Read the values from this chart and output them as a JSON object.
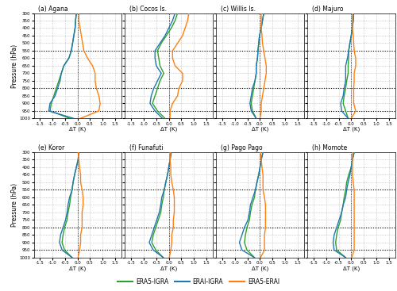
{
  "pressure_levels": [
    300,
    350,
    400,
    450,
    500,
    550,
    600,
    650,
    700,
    750,
    800,
    850,
    900,
    950,
    1000
  ],
  "highlighted_levels": [
    550,
    800,
    950
  ],
  "stations": [
    "(a) Agana",
    "(b) Cocos Is.",
    "(c) Willis Is.",
    "(d) Majuro",
    "(e) Koror",
    "(f) Funafuti",
    "(g) Pago Pago",
    "(h) Momote"
  ],
  "xlim": [
    -1.75,
    1.75
  ],
  "xticks": [
    -1.5,
    -1.0,
    -0.5,
    0.0,
    0.5,
    1.0,
    1.5
  ],
  "ylim": [
    1000,
    300
  ],
  "yticks": [
    300,
    350,
    400,
    450,
    500,
    550,
    600,
    650,
    700,
    750,
    800,
    850,
    900,
    950,
    1000
  ],
  "ylabel": "Pressure (hPa)",
  "xlabel": "ΔT (K)",
  "color_era5_igra": "#2ca02c",
  "color_erai_igra": "#1f77b4",
  "color_era5_erai": "#ff7f0e",
  "legend_labels": [
    "ERA5-IGRA",
    "ERAI-IGRA",
    "ERA5-ERAI"
  ],
  "agana": {
    "era5_igra": [
      -0.05,
      -0.08,
      -0.1,
      -0.15,
      -0.2,
      -0.25,
      -0.35,
      -0.55,
      -0.65,
      -0.75,
      -0.85,
      -0.95,
      -1.05,
      -1.1,
      -0.3
    ],
    "erai_igra": [
      -0.05,
      -0.08,
      -0.1,
      -0.15,
      -0.2,
      -0.25,
      -0.35,
      -0.55,
      -0.65,
      -0.7,
      -0.8,
      -0.9,
      -1.1,
      -1.15,
      -0.15
    ],
    "era5_erai": [
      0.05,
      0.05,
      0.1,
      0.15,
      0.2,
      0.25,
      0.4,
      0.6,
      0.7,
      0.7,
      0.75,
      0.85,
      0.9,
      0.85,
      0.1
    ]
  },
  "cocos_is": {
    "era5_igra": [
      0.35,
      0.25,
      0.1,
      -0.1,
      -0.3,
      -0.45,
      -0.4,
      -0.35,
      -0.2,
      -0.35,
      -0.45,
      -0.55,
      -0.65,
      -0.45,
      -0.15
    ],
    "erai_igra": [
      0.25,
      0.15,
      0.0,
      -0.15,
      -0.35,
      -0.55,
      -0.55,
      -0.5,
      -0.3,
      -0.45,
      -0.6,
      -0.7,
      -0.75,
      -0.55,
      -0.25
    ],
    "era5_erai": [
      0.8,
      0.75,
      0.65,
      0.55,
      0.35,
      0.15,
      0.15,
      0.25,
      0.55,
      0.55,
      0.4,
      0.35,
      0.15,
      0.05,
      0.05
    ]
  },
  "willis_is": {
    "era5_igra": [
      0.15,
      0.1,
      0.05,
      -0.02,
      -0.05,
      -0.08,
      -0.1,
      -0.15,
      -0.15,
      -0.2,
      -0.25,
      -0.3,
      -0.35,
      -0.3,
      -0.15
    ],
    "erai_igra": [
      0.15,
      0.1,
      0.05,
      -0.02,
      -0.05,
      -0.08,
      -0.1,
      -0.15,
      -0.15,
      -0.2,
      -0.3,
      -0.35,
      -0.4,
      -0.35,
      -0.15
    ],
    "era5_erai": [
      0.05,
      0.05,
      0.05,
      0.08,
      0.1,
      0.15,
      0.2,
      0.25,
      0.25,
      0.2,
      0.15,
      0.1,
      0.05,
      0.05,
      0.0
    ]
  },
  "majuro": {
    "era5_igra": [
      0.1,
      0.08,
      0.05,
      0.0,
      -0.05,
      -0.1,
      -0.1,
      -0.12,
      -0.12,
      -0.18,
      -0.22,
      -0.28,
      -0.32,
      -0.22,
      -0.12
    ],
    "erai_igra": [
      0.1,
      0.08,
      0.05,
      0.0,
      -0.05,
      -0.1,
      -0.15,
      -0.22,
      -0.22,
      -0.22,
      -0.28,
      -0.32,
      -0.42,
      -0.38,
      -0.12
    ],
    "era5_erai": [
      0.05,
      0.05,
      0.05,
      0.08,
      0.1,
      0.12,
      0.18,
      0.18,
      0.12,
      0.12,
      0.1,
      0.1,
      0.1,
      0.18,
      0.0
    ]
  },
  "koror": {
    "era5_igra": [
      0.05,
      0.02,
      -0.05,
      -0.12,
      -0.18,
      -0.22,
      -0.28,
      -0.32,
      -0.38,
      -0.42,
      -0.52,
      -0.58,
      -0.62,
      -0.52,
      -0.22
    ],
    "erai_igra": [
      0.05,
      0.02,
      -0.05,
      -0.12,
      -0.18,
      -0.22,
      -0.32,
      -0.38,
      -0.42,
      -0.48,
      -0.58,
      -0.68,
      -0.72,
      -0.62,
      -0.22
    ],
    "era5_erai": [
      0.02,
      0.05,
      0.08,
      0.12,
      0.12,
      0.18,
      0.22,
      0.22,
      0.18,
      0.18,
      0.18,
      0.12,
      0.12,
      0.08,
      0.02
    ]
  },
  "funafuti": {
    "era5_igra": [
      0.1,
      0.05,
      0.0,
      -0.05,
      -0.12,
      -0.18,
      -0.22,
      -0.28,
      -0.32,
      -0.42,
      -0.52,
      -0.62,
      -0.68,
      -0.52,
      -0.22
    ],
    "erai_igra": [
      0.1,
      0.05,
      0.0,
      -0.05,
      -0.12,
      -0.18,
      -0.28,
      -0.32,
      -0.38,
      -0.48,
      -0.58,
      -0.68,
      -0.78,
      -0.62,
      -0.22
    ],
    "era5_erai": [
      0.05,
      0.05,
      0.08,
      0.08,
      0.12,
      0.18,
      0.22,
      0.22,
      0.22,
      0.18,
      0.18,
      0.12,
      0.12,
      0.08,
      0.02
    ]
  },
  "pago_pago": {
    "era5_igra": [
      0.12,
      0.05,
      0.0,
      -0.05,
      -0.12,
      -0.18,
      -0.22,
      -0.32,
      -0.38,
      -0.42,
      -0.52,
      -0.58,
      -0.62,
      -0.52,
      -0.22
    ],
    "erai_igra": [
      0.12,
      0.05,
      0.0,
      -0.05,
      -0.12,
      -0.18,
      -0.28,
      -0.38,
      -0.42,
      -0.48,
      -0.62,
      -0.72,
      -0.82,
      -0.72,
      -0.22
    ],
    "era5_erai": [
      0.02,
      0.05,
      0.08,
      0.12,
      0.12,
      0.12,
      0.18,
      0.22,
      0.22,
      0.22,
      0.22,
      0.18,
      0.18,
      0.18,
      0.02
    ]
  },
  "momote": {
    "era5_igra": [
      0.12,
      0.05,
      0.0,
      -0.1,
      -0.18,
      -0.22,
      -0.28,
      -0.32,
      -0.38,
      -0.42,
      -0.52,
      -0.58,
      -0.62,
      -0.58,
      -0.22
    ],
    "erai_igra": [
      0.12,
      0.05,
      0.0,
      -0.05,
      -0.12,
      -0.18,
      -0.22,
      -0.32,
      -0.38,
      -0.48,
      -0.58,
      -0.68,
      -0.72,
      -0.68,
      -0.22
    ],
    "era5_erai": [
      0.05,
      0.05,
      0.05,
      0.05,
      0.08,
      0.12,
      0.12,
      0.12,
      0.12,
      0.12,
      0.12,
      0.12,
      0.12,
      0.12,
      0.02
    ]
  }
}
